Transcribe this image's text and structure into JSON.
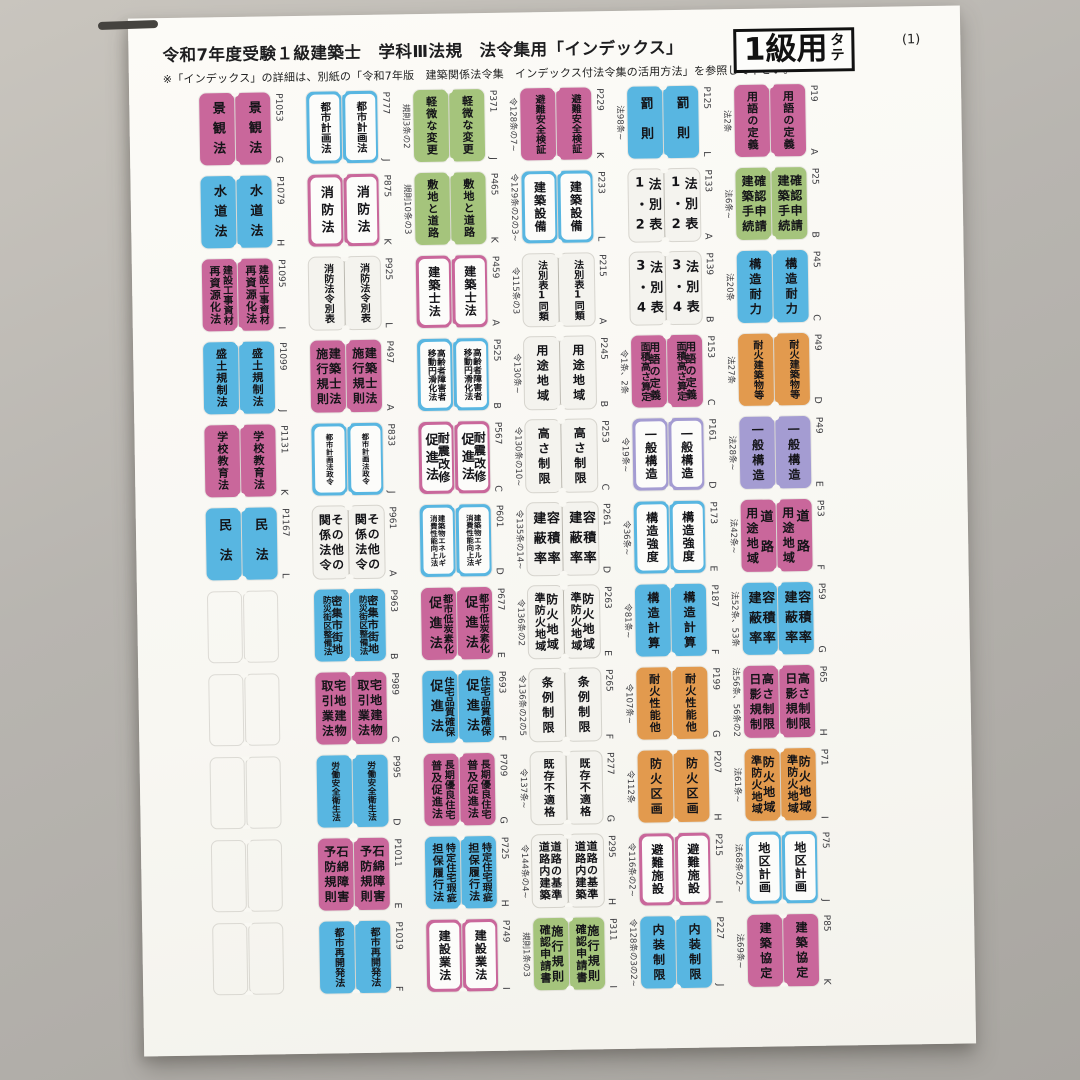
{
  "header": {
    "title": "令和7年度受験１級建築士　学科Ⅲ法規　法令集用「インデックス」",
    "note": "※「インデックス」の詳細は、別紙の「令和7年版　建築関係法令集　インデックス付法令集の活用方法」を参照して下さい。",
    "badge_main": "1級用",
    "badge_side": "タテ",
    "page_indicator": "(1)"
  },
  "palette": {
    "pink": "#c9679b",
    "blue": "#58b6e1",
    "green": "#a5c47c",
    "orange": "#e29a4e",
    "purple": "#a49cd2",
    "white_tab": "#f4f3ee",
    "paper": "#faf9f4",
    "background": "#b8b5b0"
  },
  "rows": [
    {
      "groups": [
        {
          "color": "pink",
          "inner": false,
          "cols": [
            "景観法"
          ],
          "ref": "",
          "page": "P1053",
          "letter": "G"
        },
        {
          "color": "blue",
          "inner": true,
          "cols": [
            "都市計画法"
          ],
          "ref": "",
          "page": "P777",
          "letter": "J"
        },
        {
          "color": "green",
          "inner": false,
          "cols": [
            "軽微な変更"
          ],
          "ref": "規則3条の2",
          "page": "P371",
          "letter": "J"
        },
        {
          "color": "pink",
          "inner": false,
          "cols": [
            "避難安全検証"
          ],
          "ref": "令128条の7~",
          "page": "P229",
          "letter": "K"
        },
        {
          "color": "blue",
          "inner": false,
          "cols": [
            "罰則"
          ],
          "ref": "法98条~",
          "page": "P125",
          "letter": "L"
        },
        {
          "color": "pink",
          "inner": false,
          "cols": [
            "用語の定義"
          ],
          "ref": "法2条",
          "page": "P19",
          "letter": "A"
        }
      ]
    },
    {
      "groups": [
        {
          "color": "blue",
          "inner": false,
          "cols": [
            "水道法"
          ],
          "ref": "",
          "page": "P1079",
          "letter": "H"
        },
        {
          "color": "pink",
          "inner": true,
          "cols": [
            "消防法"
          ],
          "ref": "",
          "page": "P875",
          "letter": "K"
        },
        {
          "color": "green",
          "inner": false,
          "cols": [
            "敷地と道路"
          ],
          "ref": "規則10条の3",
          "page": "P465",
          "letter": "K"
        },
        {
          "color": "blue",
          "inner": true,
          "cols": [
            "建築設備"
          ],
          "ref": "令129条の2の3~",
          "page": "P233",
          "letter": "L"
        },
        {
          "color": "white",
          "inner": false,
          "cols": [
            "法別表",
            "1・2"
          ],
          "ref": "",
          "page": "P133",
          "letter": "A"
        },
        {
          "color": "green",
          "inner": false,
          "cols": [
            "確認申請",
            "建築手続"
          ],
          "ref": "法6条~",
          "page": "P25",
          "letter": "B"
        }
      ]
    },
    {
      "groups": [
        {
          "color": "pink",
          "inner": false,
          "cols": [
            "建設工事資材",
            "再資源化法"
          ],
          "ref": "",
          "page": "P1095",
          "letter": "I"
        },
        {
          "color": "white",
          "inner": false,
          "cols": [
            "消防法令別表"
          ],
          "ref": "",
          "page": "P925",
          "letter": "L"
        },
        {
          "color": "pink",
          "inner": true,
          "cols": [
            "建築士法"
          ],
          "ref": "",
          "page": "P459",
          "letter": "A"
        },
        {
          "color": "white",
          "inner": false,
          "cols": [
            "法別表1同類"
          ],
          "ref": "令115条の3",
          "page": "P215",
          "letter": "A"
        },
        {
          "color": "white",
          "inner": false,
          "cols": [
            "法別表",
            "3・4"
          ],
          "ref": "",
          "page": "P139",
          "letter": "B"
        },
        {
          "color": "blue",
          "inner": false,
          "cols": [
            "構造耐力"
          ],
          "ref": "法20条",
          "page": "P45",
          "letter": "C"
        }
      ]
    },
    {
      "groups": [
        {
          "color": "blue",
          "inner": false,
          "cols": [
            "盛土規制法"
          ],
          "ref": "",
          "page": "P1099",
          "letter": "J"
        },
        {
          "color": "pink",
          "inner": false,
          "cols": [
            "建築士法",
            "施行規則"
          ],
          "ref": "",
          "page": "P497",
          "letter": "A"
        },
        {
          "color": "blue",
          "inner": true,
          "cols": [
            "高齢者障害者",
            "移動円滑化法"
          ],
          "ref": "",
          "page": "P525",
          "letter": "B"
        },
        {
          "color": "white",
          "inner": false,
          "cols": [
            "用途地域"
          ],
          "ref": "令130条~",
          "page": "P245",
          "letter": "B"
        },
        {
          "color": "pink",
          "inner": false,
          "cols": [
            "用語の定義",
            "面積高さ算定"
          ],
          "ref": "令1条、2条",
          "page": "P153",
          "letter": "C"
        },
        {
          "color": "orange",
          "inner": false,
          "cols": [
            "耐火建築物等"
          ],
          "ref": "法27条",
          "page": "P49",
          "letter": "D"
        }
      ]
    },
    {
      "groups": [
        {
          "color": "pink",
          "inner": false,
          "cols": [
            "学校教育法"
          ],
          "ref": "",
          "page": "P1131",
          "letter": "K"
        },
        {
          "color": "blue",
          "inner": true,
          "cols": [
            "都市計画法政令"
          ],
          "ref": "",
          "page": "P833",
          "letter": "J"
        },
        {
          "color": "pink",
          "inner": true,
          "cols": [
            "耐震改修",
            "促進法"
          ],
          "ref": "",
          "page": "P567",
          "letter": "C"
        },
        {
          "color": "white",
          "inner": false,
          "cols": [
            "高さ制限"
          ],
          "ref": "令130条の10~",
          "page": "P253",
          "letter": "C"
        },
        {
          "color": "purple",
          "inner": true,
          "cols": [
            "一般構造"
          ],
          "ref": "令19条~",
          "page": "P161",
          "letter": "D"
        },
        {
          "color": "purple",
          "inner": false,
          "cols": [
            "一般構造"
          ],
          "ref": "法28条~",
          "page": "P49",
          "letter": "E"
        }
      ]
    },
    {
      "groups": [
        {
          "color": "blue",
          "inner": false,
          "cols": [
            "民法"
          ],
          "ref": "",
          "page": "P1167",
          "letter": "L"
        },
        {
          "color": "white",
          "inner": false,
          "cols": [
            "その他の",
            "関係法令"
          ],
          "ref": "",
          "page": "P961",
          "letter": "A"
        },
        {
          "color": "blue",
          "inner": true,
          "cols": [
            "建築物エネルギ",
            "消費性能向上法"
          ],
          "ref": "",
          "page": "P601",
          "letter": "D"
        },
        {
          "color": "white",
          "inner": false,
          "cols": [
            "容積率",
            "建蔽率"
          ],
          "ref": "令135条の14~",
          "page": "P261",
          "letter": "D"
        },
        {
          "color": "blue",
          "inner": true,
          "cols": [
            "構造強度"
          ],
          "ref": "令36条~",
          "page": "P173",
          "letter": "E"
        },
        {
          "color": "pink",
          "inner": false,
          "cols": [
            "道路",
            "用途地域"
          ],
          "ref": "法42条~",
          "page": "P53",
          "letter": "F"
        }
      ]
    },
    {
      "groups": [
        null,
        {
          "color": "blue",
          "inner": false,
          "cols": [
            "密集市街地",
            "防災街区整備法"
          ],
          "ref": "",
          "page": "P963",
          "letter": "B"
        },
        {
          "color": "pink",
          "inner": false,
          "cols": [
            "都市低炭素化",
            "促進法"
          ],
          "ref": "",
          "page": "P677",
          "letter": "E"
        },
        {
          "color": "white",
          "inner": false,
          "cols": [
            "防火地域",
            "準防火地域"
          ],
          "ref": "令136条の2",
          "page": "P263",
          "letter": "E"
        },
        {
          "color": "blue",
          "inner": false,
          "cols": [
            "構造計算"
          ],
          "ref": "令81条~",
          "page": "P187",
          "letter": "F"
        },
        {
          "color": "blue",
          "inner": false,
          "cols": [
            "容積率",
            "建蔽率"
          ],
          "ref": "法52条、53条",
          "page": "P59",
          "letter": "G"
        }
      ]
    },
    {
      "groups": [
        null,
        {
          "color": "pink",
          "inner": false,
          "cols": [
            "宅地建物",
            "取引業法"
          ],
          "ref": "",
          "page": "P989",
          "letter": "C"
        },
        {
          "color": "blue",
          "inner": false,
          "cols": [
            "住宅品質確保",
            "促進法"
          ],
          "ref": "",
          "page": "P693",
          "letter": "F"
        },
        {
          "color": "white",
          "inner": false,
          "cols": [
            "条例制限"
          ],
          "ref": "令136条の2の5",
          "page": "P265",
          "letter": "F"
        },
        {
          "color": "orange",
          "inner": false,
          "cols": [
            "耐火性能他"
          ],
          "ref": "令107条~",
          "page": "P199",
          "letter": "G"
        },
        {
          "color": "pink",
          "inner": false,
          "cols": [
            "高さ制限",
            "日影規制"
          ],
          "ref": "法56条、56条の2",
          "page": "P65",
          "letter": "H"
        }
      ]
    },
    {
      "groups": [
        null,
        {
          "color": "blue",
          "inner": false,
          "cols": [
            "労働安全衛生法"
          ],
          "ref": "",
          "page": "P995",
          "letter": "D"
        },
        {
          "color": "pink",
          "inner": false,
          "cols": [
            "長期優良住宅",
            "普及促進法"
          ],
          "ref": "",
          "page": "P709",
          "letter": "G"
        },
        {
          "color": "white",
          "inner": false,
          "cols": [
            "既存不適格"
          ],
          "ref": "令137条~",
          "page": "P277",
          "letter": "G"
        },
        {
          "color": "orange",
          "inner": false,
          "cols": [
            "防火区画"
          ],
          "ref": "令112条",
          "page": "P207",
          "letter": "H"
        },
        {
          "color": "orange",
          "inner": false,
          "cols": [
            "防火地域",
            "準防火地域"
          ],
          "ref": "法61条~",
          "page": "P71",
          "letter": "I"
        }
      ]
    },
    {
      "groups": [
        null,
        {
          "color": "pink",
          "inner": false,
          "cols": [
            "石綿障害",
            "予防規則"
          ],
          "ref": "",
          "page": "P1011",
          "letter": "E"
        },
        {
          "color": "blue",
          "inner": false,
          "cols": [
            "特定住宅瑕疵",
            "担保履行法"
          ],
          "ref": "",
          "page": "P725",
          "letter": "H"
        },
        {
          "color": "white",
          "inner": false,
          "cols": [
            "道路の基準",
            "道路内建築"
          ],
          "ref": "令144条の4~",
          "page": "P295",
          "letter": "H"
        },
        {
          "color": "pink",
          "inner": true,
          "cols": [
            "避難施設"
          ],
          "ref": "令116条の2~",
          "page": "P215",
          "letter": "I"
        },
        {
          "color": "blue",
          "inner": true,
          "cols": [
            "地区計画"
          ],
          "ref": "法68条の2~",
          "page": "P75",
          "letter": "J"
        }
      ]
    },
    {
      "groups": [
        null,
        {
          "color": "blue",
          "inner": false,
          "cols": [
            "都市再開発法"
          ],
          "ref": "",
          "page": "P1019",
          "letter": "F"
        },
        {
          "color": "pink",
          "inner": true,
          "cols": [
            "建設業法"
          ],
          "ref": "",
          "page": "P749",
          "letter": "I"
        },
        {
          "color": "green",
          "inner": false,
          "cols": [
            "施行規則",
            "確認申請書"
          ],
          "ref": "規則1条の3",
          "page": "P311",
          "letter": "I"
        },
        {
          "color": "blue",
          "inner": false,
          "cols": [
            "内装制限"
          ],
          "ref": "令128条の3の2~",
          "page": "P227",
          "letter": "J"
        },
        {
          "color": "pink",
          "inner": false,
          "cols": [
            "建築協定"
          ],
          "ref": "法69条~",
          "page": "P85",
          "letter": "K"
        }
      ]
    }
  ]
}
